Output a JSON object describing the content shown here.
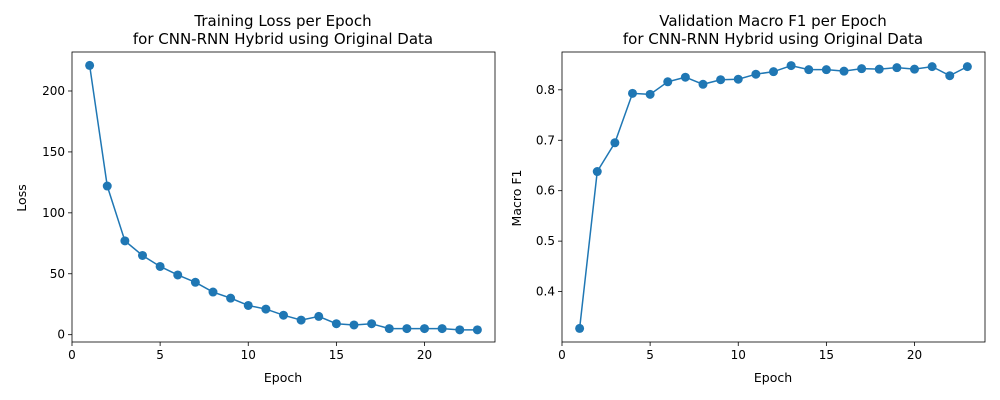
{
  "colors": {
    "series": "#1f77b4",
    "axes": "#000000",
    "background": "#ffffff"
  },
  "chart_data": [
    {
      "type": "line",
      "title": "Training Loss per Epoch",
      "subtitle": "for CNN-RNN Hybrid using Original Data",
      "xlabel": "Epoch",
      "ylabel": "Loss",
      "xlim": [
        0,
        24
      ],
      "ylim": [
        -6,
        232
      ],
      "xticks": [
        0,
        5,
        10,
        15,
        20
      ],
      "yticks": [
        0,
        50,
        100,
        150,
        200
      ],
      "ytick_labels": [
        "0",
        "50",
        "100",
        "150",
        "200"
      ],
      "grid": false,
      "markers": true,
      "series": [
        {
          "x": [
            1,
            2,
            3,
            4,
            5,
            6,
            7,
            8,
            9,
            10,
            11,
            12,
            13,
            14,
            15,
            16,
            17,
            18,
            19,
            20,
            21,
            22,
            23
          ],
          "values": [
            221,
            122,
            77,
            65,
            56,
            49,
            43,
            35,
            30,
            24,
            21,
            16,
            12,
            15,
            9,
            8,
            9,
            5,
            5,
            5,
            5,
            4,
            4
          ]
        }
      ]
    },
    {
      "type": "line",
      "title": "Validation Macro F1 per Epoch",
      "subtitle": "for CNN-RNN Hybrid using Original Data",
      "xlabel": "Epoch",
      "ylabel": "Macro F1",
      "xlim": [
        0,
        24
      ],
      "ylim": [
        0.3,
        0.875
      ],
      "xticks": [
        0,
        5,
        10,
        15,
        20
      ],
      "yticks": [
        0.4,
        0.5,
        0.6,
        0.7,
        0.8
      ],
      "ytick_labels": [
        "0.4",
        "0.5",
        "0.6",
        "0.7",
        "0.8"
      ],
      "grid": false,
      "markers": true,
      "series": [
        {
          "x": [
            1,
            2,
            3,
            4,
            5,
            6,
            7,
            8,
            9,
            10,
            11,
            12,
            13,
            14,
            15,
            16,
            17,
            18,
            19,
            20,
            21,
            22,
            23
          ],
          "values": [
            0.327,
            0.638,
            0.695,
            0.793,
            0.791,
            0.816,
            0.825,
            0.811,
            0.82,
            0.821,
            0.831,
            0.836,
            0.848,
            0.84,
            0.84,
            0.837,
            0.842,
            0.841,
            0.844,
            0.841,
            0.846,
            0.828,
            0.846
          ]
        }
      ]
    }
  ]
}
